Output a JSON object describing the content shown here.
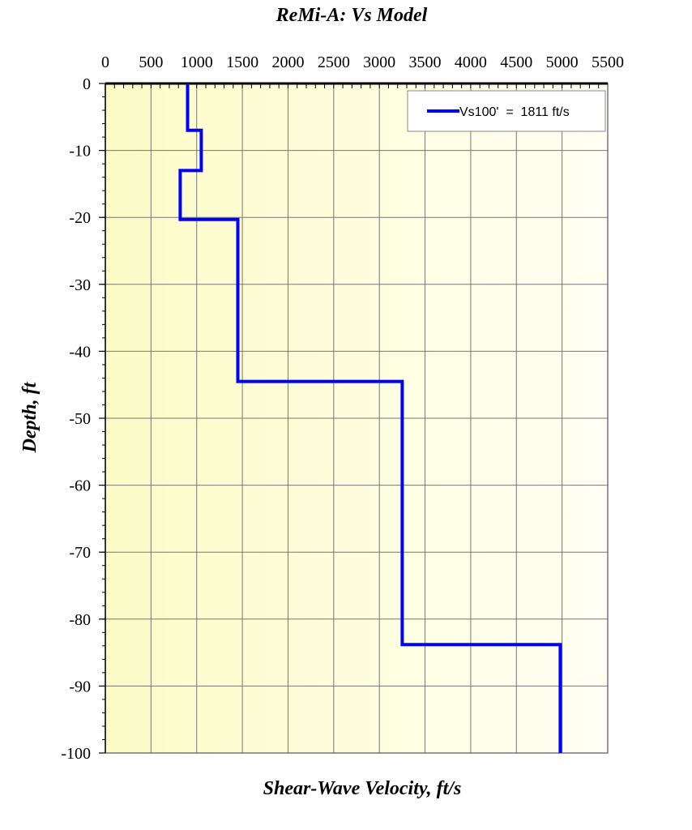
{
  "chart_data": {
    "type": "line",
    "title": "ReMi-A: Vs Model",
    "xlabel": "Shear-Wave Velocity, ft/s",
    "ylabel": "Depth, ft",
    "xlim": [
      0,
      5500
    ],
    "ylim": [
      -100,
      0
    ],
    "x_ticks": [
      "0",
      "500",
      "1000",
      "1500",
      "2000",
      "2500",
      "3000",
      "3500",
      "4000",
      "4500",
      "5000",
      "5500"
    ],
    "y_ticks": [
      "0",
      "-10",
      "-20",
      "-30",
      "-40",
      "-50",
      "-60",
      "-70",
      "-80",
      "-90",
      "-100"
    ],
    "x_axis_position": "top",
    "grid": true,
    "legend_position": "top-right",
    "colors": {
      "series": "#0000ff",
      "plot_bg_left": "#fbfbc6",
      "plot_bg_right": "#fffff4",
      "grid": "#777777"
    },
    "series": [
      {
        "name": "Vs100'  =  1811 ft/s",
        "points": [
          [
            900,
            0
          ],
          [
            900,
            -7
          ],
          [
            1050,
            -7
          ],
          [
            1050,
            -13
          ],
          [
            820,
            -13
          ],
          [
            820,
            -20.3
          ],
          [
            1450,
            -20.3
          ],
          [
            1450,
            -44.5
          ],
          [
            3250,
            -44.5
          ],
          [
            3250,
            -83.8
          ],
          [
            4980,
            -83.8
          ],
          [
            4980,
            -100
          ]
        ]
      }
    ]
  }
}
